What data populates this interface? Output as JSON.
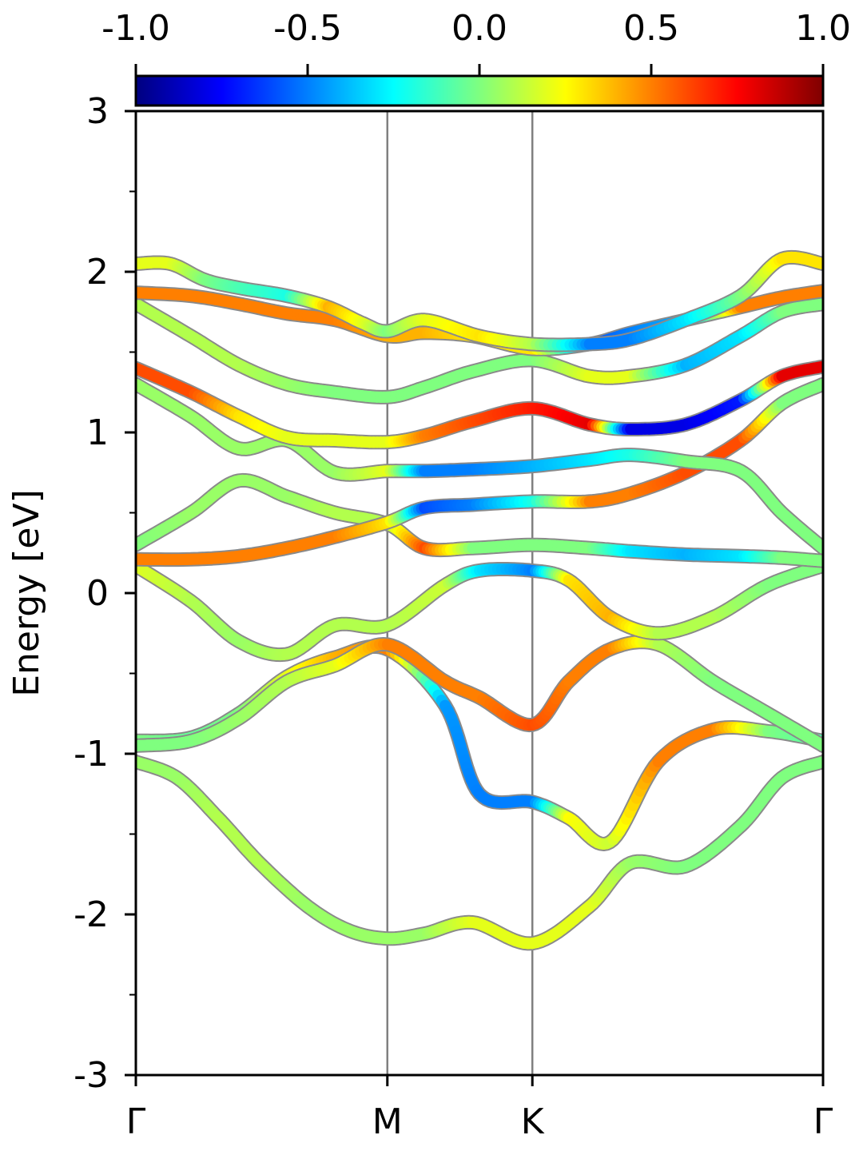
{
  "chart_data": {
    "type": "line",
    "title": "",
    "ylabel": "Energy [eV]",
    "xlabel": "",
    "ylim": [
      -3,
      3
    ],
    "y_ticks": [
      "-3",
      "-2",
      "-1",
      "0",
      "1",
      "2",
      "3"
    ],
    "y_tick_values": [
      -3,
      -2,
      -1,
      0,
      1,
      2,
      3
    ],
    "k_path_labels": [
      "Γ",
      "M",
      "K",
      "Γ"
    ],
    "k_path_positions": [
      0,
      0.366,
      0.577,
      1.0
    ],
    "colorbar": {
      "range": [
        -1.0,
        1.0
      ],
      "tick_labels": [
        "-1.0",
        "-0.5",
        "0.0",
        "0.5",
        "1.0"
      ],
      "tick_values": [
        -1.0,
        -0.5,
        0.0,
        0.5,
        1.0
      ],
      "colormap": "jet",
      "colormap_stops": [
        "#00007f",
        "#0000ff",
        "#007fff",
        "#00ffff",
        "#7fff7f",
        "#ffff00",
        "#ff7f00",
        "#ff0000",
        "#7f0000"
      ]
    },
    "grid": false,
    "series": [
      {
        "x": [
          0,
          0.06,
          0.12,
          0.18,
          0.25,
          0.31,
          0.366,
          0.42,
          0.49,
          0.577,
          0.66,
          0.72,
          0.8,
          0.88,
          0.94,
          1.0
        ],
        "y": [
          -1.05,
          -1.15,
          -1.4,
          -1.68,
          -1.95,
          -2.1,
          -2.15,
          -2.12,
          -2.05,
          -2.18,
          -1.95,
          -1.68,
          -1.7,
          -1.45,
          -1.15,
          -1.05
        ],
        "color_value": [
          0.05,
          0.05,
          0.1,
          0.1,
          0.05,
          0.05,
          0.05,
          0.05,
          0.2,
          0.2,
          0.2,
          0.05,
          0.0,
          0.0,
          0.0,
          0.0
        ]
      },
      {
        "x": [
          0,
          0.08,
          0.15,
          0.22,
          0.29,
          0.366,
          0.45,
          0.5,
          0.577,
          0.63,
          0.69,
          0.76,
          0.84,
          0.92,
          1.0
        ],
        "y": [
          -0.92,
          -0.9,
          -0.75,
          -0.52,
          -0.4,
          -0.35,
          -0.7,
          -1.25,
          -1.3,
          -1.4,
          -1.55,
          -1.05,
          -0.85,
          -0.86,
          -0.92
        ],
        "color_value": [
          0.0,
          -0.05,
          0.0,
          0.2,
          0.4,
          0.5,
          -0.45,
          -0.5,
          -0.5,
          0.25,
          0.15,
          0.5,
          0.5,
          0.0,
          -0.1
        ]
      },
      {
        "x": [
          0,
          0.08,
          0.15,
          0.22,
          0.29,
          0.366,
          0.45,
          0.5,
          0.577,
          0.63,
          0.69,
          0.76,
          0.84,
          0.92,
          1.0
        ],
        "y": [
          -0.95,
          -0.92,
          -0.78,
          -0.55,
          -0.45,
          -0.32,
          -0.55,
          -0.65,
          -0.82,
          -0.55,
          -0.35,
          -0.32,
          -0.55,
          -0.75,
          -0.95
        ],
        "color_value": [
          0.0,
          0.0,
          0.05,
          0.1,
          0.2,
          0.5,
          0.5,
          0.5,
          0.6,
          0.5,
          0.5,
          0.1,
          0.0,
          0.0,
          0.0
        ]
      },
      {
        "x": [
          0,
          0.08,
          0.15,
          0.22,
          0.29,
          0.366,
          0.45,
          0.5,
          0.577,
          0.63,
          0.69,
          0.76,
          0.84,
          0.92,
          1.0
        ],
        "y": [
          0.17,
          -0.05,
          -0.3,
          -0.38,
          -0.2,
          -0.2,
          0.05,
          0.14,
          0.14,
          0.08,
          -0.15,
          -0.25,
          -0.15,
          0.05,
          0.17
        ],
        "color_value": [
          0.2,
          0.1,
          0.05,
          0.1,
          0.1,
          0.1,
          0.15,
          -0.3,
          -0.5,
          0.3,
          0.4,
          0.1,
          0.1,
          0.0,
          0.0
        ]
      },
      {
        "x": [
          0,
          0.08,
          0.15,
          0.22,
          0.29,
          0.366,
          0.42,
          0.49,
          0.577,
          0.66,
          0.72,
          0.8,
          0.88,
          0.94,
          1.0
        ],
        "y": [
          0.3,
          0.5,
          0.7,
          0.6,
          0.5,
          0.43,
          0.28,
          0.28,
          0.3,
          0.28,
          0.26,
          0.24,
          0.23,
          0.22,
          0.2
        ],
        "color_value": [
          0.0,
          0.05,
          0.05,
          0.05,
          0.1,
          0.1,
          0.6,
          0.0,
          0.0,
          0.0,
          -0.3,
          -0.4,
          -0.3,
          0.0,
          0.0
        ]
      },
      {
        "x": [
          0,
          0.08,
          0.15,
          0.22,
          0.29,
          0.366,
          0.42,
          0.49,
          0.577,
          0.66,
          0.72,
          0.8,
          0.88,
          0.94,
          1.0
        ],
        "y": [
          0.21,
          0.21,
          0.23,
          0.28,
          0.35,
          0.44,
          0.53,
          0.55,
          0.57,
          0.57,
          0.62,
          0.75,
          0.95,
          1.18,
          1.3
        ],
        "color_value": [
          0.5,
          0.5,
          0.5,
          0.5,
          0.5,
          0.3,
          -0.6,
          -0.5,
          -0.2,
          0.5,
          0.5,
          0.6,
          0.6,
          0.0,
          0.0
        ]
      },
      {
        "x": [
          0,
          0.08,
          0.15,
          0.22,
          0.29,
          0.366,
          0.42,
          0.49,
          0.577,
          0.66,
          0.72,
          0.8,
          0.88,
          0.94,
          1.0
        ],
        "y": [
          1.3,
          1.1,
          0.9,
          0.95,
          0.75,
          0.76,
          0.76,
          0.77,
          0.79,
          0.83,
          0.86,
          0.82,
          0.76,
          0.5,
          0.28
        ],
        "color_value": [
          0.05,
          0.05,
          0.05,
          0.05,
          0.05,
          0.2,
          -0.5,
          -0.5,
          -0.4,
          -0.3,
          -0.2,
          0.0,
          0.0,
          0.0,
          0.0
        ]
      },
      {
        "x": [
          0,
          0.08,
          0.15,
          0.22,
          0.29,
          0.366,
          0.42,
          0.49,
          0.577,
          0.66,
          0.72,
          0.8,
          0.88,
          0.94,
          1.0
        ],
        "y": [
          1.4,
          1.25,
          1.1,
          0.97,
          0.95,
          0.94,
          0.98,
          1.07,
          1.15,
          1.05,
          1.02,
          1.05,
          1.2,
          1.35,
          1.41
        ],
        "color_value": [
          0.6,
          0.6,
          0.3,
          0.2,
          0.2,
          0.2,
          0.5,
          0.6,
          0.7,
          0.8,
          -0.8,
          -0.8,
          -0.7,
          0.8,
          0.8
        ]
      },
      {
        "x": [
          0,
          0.08,
          0.15,
          0.22,
          0.29,
          0.366,
          0.42,
          0.49,
          0.577,
          0.66,
          0.72,
          0.8,
          0.88,
          0.94,
          1.0
        ],
        "y": [
          1.8,
          1.6,
          1.42,
          1.3,
          1.25,
          1.22,
          1.28,
          1.38,
          1.45,
          1.35,
          1.35,
          1.42,
          1.6,
          1.75,
          1.8
        ],
        "color_value": [
          0.1,
          0.1,
          0.1,
          0.05,
          0.0,
          0.0,
          0.0,
          0.0,
          0.0,
          0.2,
          0.2,
          -0.4,
          -0.3,
          0.0,
          0.0
        ]
      },
      {
        "x": [
          0,
          0.08,
          0.15,
          0.22,
          0.29,
          0.366,
          0.42,
          0.49,
          0.577,
          0.66,
          0.72,
          0.8,
          0.88,
          0.94,
          1.0
        ],
        "y": [
          1.87,
          1.85,
          1.8,
          1.74,
          1.7,
          1.6,
          1.62,
          1.6,
          1.52,
          1.55,
          1.62,
          1.7,
          1.78,
          1.84,
          1.88
        ],
        "color_value": [
          0.5,
          0.5,
          0.5,
          0.5,
          0.5,
          0.4,
          0.4,
          0.3,
          0.3,
          -0.6,
          -0.5,
          -0.4,
          0.5,
          0.5,
          0.5
        ]
      },
      {
        "x": [
          0,
          0.05,
          0.1,
          0.15,
          0.22,
          0.28,
          0.33,
          0.366,
          0.42,
          0.5,
          0.577,
          0.66,
          0.72,
          0.8,
          0.88,
          0.94,
          1.0
        ],
        "y": [
          2.05,
          2.05,
          1.95,
          1.9,
          1.85,
          1.78,
          1.68,
          1.63,
          1.7,
          1.6,
          1.55,
          1.55,
          1.58,
          1.7,
          1.85,
          2.08,
          2.05
        ],
        "color_value": [
          0.2,
          0.2,
          0.0,
          -0.1,
          -0.2,
          0.4,
          0.2,
          0.0,
          0.2,
          0.3,
          0.1,
          -0.5,
          -0.5,
          -0.3,
          0.0,
          0.3,
          0.3
        ]
      }
    ]
  }
}
